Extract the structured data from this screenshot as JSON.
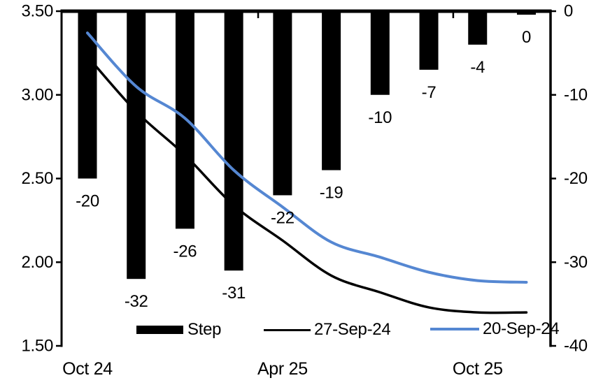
{
  "chart_data": {
    "type": "combo-bar-line",
    "title": "",
    "categories": [
      1,
      2,
      3,
      4,
      5,
      6,
      7,
      8,
      9,
      10
    ],
    "bar_series": {
      "name": "Step",
      "axis": "right",
      "unit": "bp",
      "color": "#000000",
      "values": [
        -20,
        -32,
        -26,
        -31,
        -22,
        -19,
        -10,
        -7,
        -4,
        0
      ],
      "data_labels": [
        "-20",
        "-32",
        "-26",
        "-31",
        "-22",
        "-19",
        "-10",
        "-7",
        "-4",
        "0"
      ]
    },
    "line_series": [
      {
        "name": "27-Sep-24",
        "axis": "left",
        "color": "#000000",
        "stroke_width": 3.5,
        "smooth": true,
        "values": [
          3.23,
          2.9,
          2.64,
          2.34,
          2.13,
          1.92,
          1.82,
          1.73,
          1.7,
          1.7
        ],
        "behind_bars": true
      },
      {
        "name": "20-Sep-24",
        "axis": "left",
        "color": "#5587D2",
        "stroke_width": 4,
        "smooth": true,
        "values": [
          3.37,
          3.05,
          2.86,
          2.55,
          2.33,
          2.12,
          2.03,
          1.94,
          1.89,
          1.88
        ],
        "behind_bars": false
      }
    ],
    "left_axis": {
      "max": 3.5,
      "min": 1.5,
      "tick_labels": [
        "3.50",
        "3.00",
        "2.50",
        "2.00",
        "1.50"
      ]
    },
    "right_axis": {
      "max": 0,
      "min": -40,
      "tick_labels": [
        "0",
        "-10",
        "-20",
        "-30",
        "-40"
      ]
    },
    "x_axis": {
      "tick_labels": [
        {
          "text": "Oct 24",
          "category": 1
        },
        {
          "text": "Apr 25",
          "category": 5
        },
        {
          "text": "Oct 25",
          "category": 9
        }
      ],
      "boundary_ticks_after_categories": [
        4,
        8
      ]
    },
    "legend": {
      "position": "bottom",
      "entries": [
        {
          "swatch": "bar",
          "color": "#000000",
          "label": "Step"
        },
        {
          "swatch": "line",
          "color": "#000000",
          "label": "27-Sep-24"
        },
        {
          "swatch": "line",
          "color": "#5587D2",
          "label": "20-Sep-24"
        }
      ]
    },
    "gridlines": false,
    "background": "#ffffff"
  }
}
